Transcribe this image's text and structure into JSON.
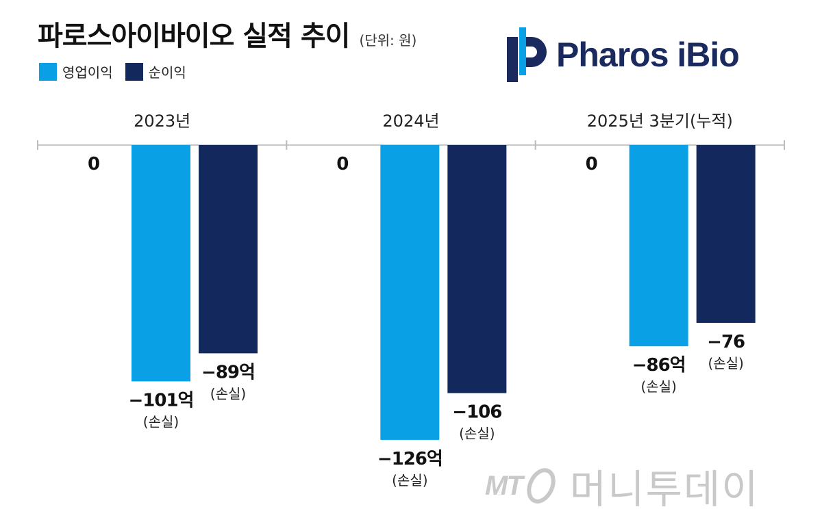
{
  "header": {
    "title": "파로스아이바이오 실적 추이",
    "unit": "(단위: 원)"
  },
  "legend": {
    "operating": "영업이익",
    "net": "순이익"
  },
  "logo": {
    "text": "Pharos iBio"
  },
  "watermark": {
    "mt": "MT",
    "name": "머니투데이"
  },
  "chart_data": {
    "type": "bar",
    "title": "파로스아이바이오 실적 추이",
    "unit_label": "(단위: 원)",
    "categories": [
      "2023년",
      "2024년",
      "2025년 3분기(누적)"
    ],
    "baseline_label": "0",
    "series": [
      {
        "name": "영업이익",
        "color": "#0aa0e6",
        "values": [
          -101,
          -126,
          -86
        ],
        "labels": [
          "−101억",
          "−126억",
          "−86억"
        ],
        "sublabels": [
          "(손실)",
          "(손실)",
          "(손실)"
        ]
      },
      {
        "name": "순이익",
        "color": "#13285d",
        "values": [
          -89,
          -106,
          -76
        ],
        "labels": [
          "−89억",
          "−106",
          "−76"
        ],
        "sublabels": [
          "(손실)",
          "(손실)",
          "(손실)"
        ]
      }
    ],
    "ylim": [
      -130,
      0
    ]
  }
}
